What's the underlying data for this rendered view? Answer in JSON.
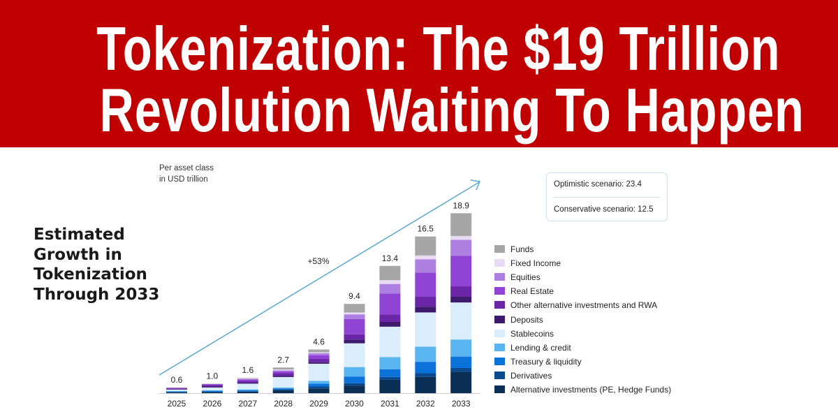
{
  "title": {
    "line1": "Tokenization: The $19 Trillion",
    "line2": "Revolution Waiting To Happen"
  },
  "side_caption": "Estimated Growth in Tokenization Through 2033",
  "scenarios": {
    "optimistic": "Optimistic scenario: 23.4",
    "conservative": "Conservative scenario: 12.5"
  },
  "chart_data": {
    "type": "bar",
    "stacked": true,
    "subtitle": "Per asset class in USD trillion",
    "subtitle_lines": [
      "Per asset class",
      "in USD trillion"
    ],
    "annotation": "+53%",
    "categories": [
      "2025",
      "2026",
      "2027",
      "2028",
      "2029",
      "2030",
      "2031",
      "2032",
      "2033"
    ],
    "totals": [
      "0.6",
      "1.0",
      "1.6",
      "2.7",
      "4.6",
      "9.4",
      "13.4",
      "16.5",
      "18.9"
    ],
    "ylim": [
      0,
      19
    ],
    "legend_position": "right",
    "series": [
      {
        "name": "Alternative investments (PE, Hedge Funds)",
        "color": "#0b2e55",
        "values": [
          0.08,
          0.1,
          0.15,
          0.3,
          0.5,
          0.8,
          1.4,
          1.7,
          2.25
        ]
      },
      {
        "name": "Derivatives",
        "color": "#0b4a8c",
        "values": [
          0.04,
          0.05,
          0.05,
          0.1,
          0.2,
          0.25,
          0.3,
          0.4,
          0.4
        ]
      },
      {
        "name": "Treasury & liquidity",
        "color": "#0a72d8",
        "values": [
          0.06,
          0.1,
          0.1,
          0.1,
          0.3,
          0.7,
          0.8,
          1.2,
          1.2
        ]
      },
      {
        "name": "Lending & credit",
        "color": "#5ab4f0",
        "values": [
          0.04,
          0.05,
          0.1,
          0.1,
          0.3,
          1.0,
          1.3,
          1.6,
          1.8
        ]
      },
      {
        "name": "Stablecoins",
        "color": "#d9edfb",
        "values": [
          0.15,
          0.3,
          0.6,
          1.1,
          1.8,
          2.5,
          3.2,
          3.6,
          3.9
        ]
      },
      {
        "name": "Deposits",
        "color": "#3d1a6b",
        "values": [
          0.05,
          0.1,
          0.1,
          0.1,
          0.15,
          0.4,
          0.5,
          0.6,
          0.6
        ]
      },
      {
        "name": "Other alternative investments and RWA",
        "color": "#6a26a6",
        "values": [
          0.08,
          0.15,
          0.2,
          0.3,
          0.35,
          0.55,
          0.8,
          1.1,
          1.1
        ]
      },
      {
        "name": "Real Estate",
        "color": "#8f44d3",
        "values": [
          0.06,
          0.1,
          0.15,
          0.2,
          0.4,
          1.6,
          2.2,
          2.5,
          3.2
        ]
      },
      {
        "name": "Equities",
        "color": "#ad7fe0",
        "values": [
          0.02,
          0.02,
          0.05,
          0.1,
          0.2,
          0.5,
          1.0,
          1.4,
          1.7
        ]
      },
      {
        "name": "Fixed Income",
        "color": "#e8dcf5",
        "values": [
          0.01,
          0.02,
          0.05,
          0.1,
          0.1,
          0.2,
          0.4,
          0.4,
          0.4
        ]
      },
      {
        "name": "Funds",
        "color": "#a6a6a6",
        "values": [
          0.01,
          0.01,
          0.05,
          0.2,
          0.3,
          0.9,
          1.5,
          2.0,
          2.4
        ]
      }
    ]
  }
}
